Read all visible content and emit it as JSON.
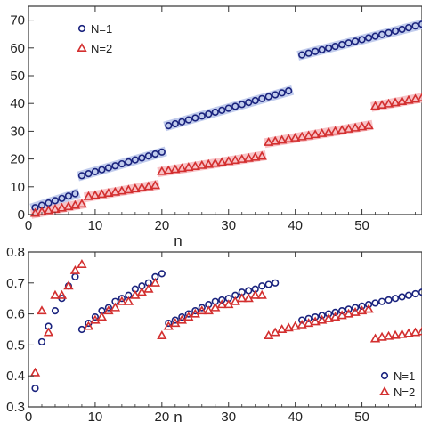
{
  "chart_data": [
    {
      "type": "scatter",
      "xlabel": "n",
      "ylabel": "",
      "xlim": [
        0,
        59
      ],
      "ylim": [
        0,
        75
      ],
      "xticks": [
        0,
        10,
        20,
        30,
        40,
        50
      ],
      "yticks": [
        0,
        10,
        20,
        30,
        40,
        50,
        60,
        70
      ],
      "grid": false,
      "legend_position": "top-left",
      "shaded_bands": true,
      "series": [
        {
          "name": "N=1",
          "marker": "circle",
          "color": "#1a237e",
          "band_color": "#b7c4ea",
          "segments": [
            {
              "x_start": 1,
              "y_start": 2.5,
              "x_end": 7,
              "y_end": 7.5
            },
            {
              "x_start": 8,
              "y_start": 14.0,
              "x_end": 20,
              "y_end": 22.5
            },
            {
              "x_start": 21,
              "y_start": 32.0,
              "x_end": 39,
              "y_end": 44.5
            },
            {
              "x_start": 41,
              "y_start": 57.5,
              "x_end": 59,
              "y_end": 68.5
            }
          ]
        },
        {
          "name": "N=2",
          "marker": "triangle",
          "color": "#d32f2f",
          "band_color": "#f7b8bd",
          "segments": [
            {
              "x_start": 1,
              "y_start": 0.5,
              "x_end": 8,
              "y_end": 3.8
            },
            {
              "x_start": 9,
              "y_start": 6.5,
              "x_end": 19,
              "y_end": 10.5
            },
            {
              "x_start": 20,
              "y_start": 15.5,
              "x_end": 35,
              "y_end": 21.0
            },
            {
              "x_start": 36,
              "y_start": 26.0,
              "x_end": 51,
              "y_end": 32.0
            },
            {
              "x_start": 52,
              "y_start": 39.0,
              "x_end": 59,
              "y_end": 42.0
            }
          ]
        }
      ]
    },
    {
      "type": "scatter",
      "xlabel": "n",
      "ylabel": "",
      "xlim": [
        0,
        59
      ],
      "ylim": [
        0.3,
        0.8
      ],
      "xticks": [
        0,
        10,
        20,
        30,
        40,
        50
      ],
      "yticks": [
        0.3,
        0.4,
        0.5,
        0.6,
        0.7,
        0.8
      ],
      "grid": false,
      "legend_position": "bottom-right",
      "series": [
        {
          "name": "N=1",
          "marker": "circle",
          "color": "#1a237e",
          "points": [
            [
              1,
              0.36
            ],
            [
              2,
              0.51
            ],
            [
              3,
              0.56
            ],
            [
              4,
              0.61
            ],
            [
              5,
              0.65
            ],
            [
              6,
              0.69
            ],
            [
              7,
              0.72
            ],
            [
              8,
              0.55
            ],
            [
              9,
              0.57
            ],
            [
              10,
              0.59
            ],
            [
              11,
              0.61
            ],
            [
              12,
              0.62
            ],
            [
              13,
              0.64
            ],
            [
              14,
              0.65
            ],
            [
              15,
              0.66
            ],
            [
              16,
              0.68
            ],
            [
              17,
              0.69
            ],
            [
              18,
              0.7
            ],
            [
              19,
              0.72
            ],
            [
              20,
              0.73
            ],
            [
              21,
              0.57
            ],
            [
              22,
              0.58
            ],
            [
              23,
              0.59
            ],
            [
              24,
              0.6
            ],
            [
              25,
              0.61
            ],
            [
              26,
              0.62
            ],
            [
              27,
              0.63
            ],
            [
              28,
              0.64
            ],
            [
              29,
              0.645
            ],
            [
              30,
              0.65
            ],
            [
              31,
              0.66
            ],
            [
              32,
              0.67
            ],
            [
              33,
              0.675
            ],
            [
              34,
              0.68
            ],
            [
              35,
              0.69
            ],
            [
              36,
              0.695
            ],
            [
              37,
              0.7
            ],
            [
              41,
              0.58
            ],
            [
              42,
              0.585
            ],
            [
              43,
              0.59
            ],
            [
              44,
              0.595
            ],
            [
              45,
              0.6
            ],
            [
              46,
              0.605
            ],
            [
              47,
              0.61
            ],
            [
              48,
              0.615
            ],
            [
              49,
              0.62
            ],
            [
              50,
              0.625
            ],
            [
              51,
              0.63
            ],
            [
              52,
              0.635
            ],
            [
              53,
              0.64
            ],
            [
              54,
              0.645
            ],
            [
              55,
              0.65
            ],
            [
              56,
              0.655
            ],
            [
              57,
              0.66
            ],
            [
              58,
              0.665
            ],
            [
              59,
              0.67
            ]
          ]
        },
        {
          "name": "N=2",
          "marker": "triangle",
          "color": "#d32f2f",
          "points": [
            [
              1,
              0.41
            ],
            [
              2,
              0.61
            ],
            [
              3,
              0.54
            ],
            [
              4,
              0.66
            ],
            [
              5,
              0.66
            ],
            [
              6,
              0.69
            ],
            [
              7,
              0.74
            ],
            [
              8,
              0.76
            ],
            [
              9,
              0.56
            ],
            [
              10,
              0.58
            ],
            [
              11,
              0.59
            ],
            [
              12,
              0.61
            ],
            [
              13,
              0.62
            ],
            [
              14,
              0.64
            ],
            [
              15,
              0.64
            ],
            [
              16,
              0.66
            ],
            [
              17,
              0.67
            ],
            [
              18,
              0.68
            ],
            [
              19,
              0.7
            ],
            [
              20,
              0.53
            ],
            [
              21,
              0.56
            ],
            [
              22,
              0.57
            ],
            [
              23,
              0.58
            ],
            [
              24,
              0.59
            ],
            [
              25,
              0.6
            ],
            [
              26,
              0.61
            ],
            [
              27,
              0.61
            ],
            [
              28,
              0.62
            ],
            [
              29,
              0.63
            ],
            [
              30,
              0.63
            ],
            [
              31,
              0.64
            ],
            [
              32,
              0.65
            ],
            [
              33,
              0.65
            ],
            [
              34,
              0.66
            ],
            [
              35,
              0.66
            ],
            [
              36,
              0.53
            ],
            [
              37,
              0.54
            ],
            [
              38,
              0.55
            ],
            [
              39,
              0.555
            ],
            [
              40,
              0.56
            ],
            [
              41,
              0.565
            ],
            [
              42,
              0.57
            ],
            [
              43,
              0.575
            ],
            [
              44,
              0.58
            ],
            [
              45,
              0.585
            ],
            [
              46,
              0.59
            ],
            [
              47,
              0.595
            ],
            [
              48,
              0.6
            ],
            [
              49,
              0.605
            ],
            [
              50,
              0.61
            ],
            [
              51,
              0.615
            ],
            [
              52,
              0.52
            ],
            [
              53,
              0.525
            ],
            [
              54,
              0.528
            ],
            [
              55,
              0.531
            ],
            [
              56,
              0.534
            ],
            [
              57,
              0.537
            ],
            [
              58,
              0.54
            ],
            [
              59,
              0.543
            ]
          ]
        }
      ]
    }
  ]
}
